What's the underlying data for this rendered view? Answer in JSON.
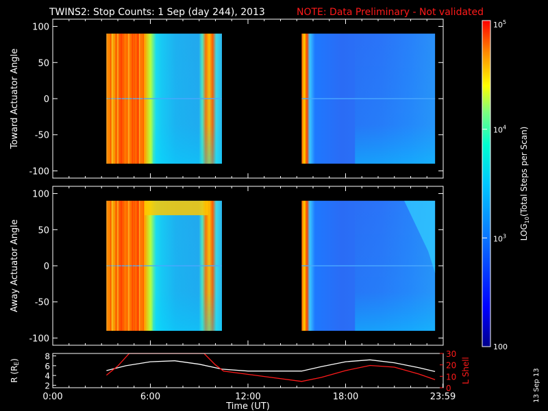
{
  "title": {
    "main": "TWINS2: Stop Counts:  1 Sep (day 244), 2013",
    "note": "NOTE: Data Preliminary - Not validated"
  },
  "stamp": "13 Sep 13",
  "colors": {
    "background": "#000000",
    "axes": "#ffffff",
    "note": "#ff1a1a",
    "r_line": "#ffffff",
    "l_line": "#ff1a1a"
  },
  "chart_data": [
    {
      "type": "heatmap",
      "ylabel": "Toward Actuator Angle",
      "ylim": [
        -110,
        110
      ],
      "yticks": [
        "100",
        "50",
        "0",
        "-50",
        "-100"
      ],
      "xlim_hours": [
        0,
        24
      ],
      "scale": "log10",
      "data_blocks": [
        {
          "start_hour": 3.3,
          "end_hour": 10.4,
          "angle_range": [
            -90,
            90
          ]
        },
        {
          "start_hour": 15.3,
          "end_hour": 23.5,
          "angle_range": [
            -90,
            90
          ]
        }
      ]
    },
    {
      "type": "heatmap",
      "ylabel": "Away Actuator Angle",
      "ylim": [
        -110,
        110
      ],
      "yticks": [
        "100",
        "50",
        "0",
        "-50",
        "-100"
      ],
      "xlim_hours": [
        0,
        24
      ],
      "scale": "log10",
      "data_blocks": [
        {
          "start_hour": 3.3,
          "end_hour": 10.4,
          "angle_range": [
            -90,
            90
          ]
        },
        {
          "start_hour": 15.3,
          "end_hour": 23.5,
          "angle_range": [
            -90,
            90
          ]
        }
      ]
    },
    {
      "type": "line",
      "xlabel": "Time (UT)",
      "xticks": [
        "0:00",
        "6:00",
        "12:00",
        "18:00",
        "23:59"
      ],
      "xtick_hours": [
        0,
        6,
        12,
        18,
        23.98
      ],
      "ylabel_left": "R (R",
      "ylabel_left_sub": "E",
      "ylabel_left_close": ")",
      "ylim_left": [
        1.5,
        8.5
      ],
      "yticks_left": [
        "8",
        "6",
        "4",
        "2"
      ],
      "ylabel_right": "L Shell",
      "ylim_right": [
        0,
        30
      ],
      "yticks_right": [
        "30",
        "20",
        "10",
        "0"
      ],
      "series": [
        {
          "axis": "left",
          "color": "#ffffff",
          "points": [
            [
              3.3,
              5.0
            ],
            [
              4.5,
              6.0
            ],
            [
              6.0,
              6.8
            ],
            [
              7.5,
              7.0
            ],
            [
              9.0,
              6.3
            ],
            [
              10.4,
              5.3
            ],
            [
              12.0,
              4.9
            ],
            [
              15.3,
              4.9
            ],
            [
              16.5,
              5.8
            ],
            [
              18.0,
              6.8
            ],
            [
              19.5,
              7.2
            ],
            [
              21.0,
              6.6
            ],
            [
              22.5,
              5.6
            ],
            [
              23.5,
              4.8
            ]
          ]
        },
        {
          "axis": "right",
          "color": "#ff1a1a",
          "points": [
            [
              3.3,
              11.0
            ],
            [
              4.0,
              19.0
            ],
            [
              4.7,
              30.5
            ],
            [
              9.3,
              30.5
            ],
            [
              10.0,
              20.0
            ],
            [
              10.5,
              14.5
            ],
            [
              15.3,
              5.5
            ],
            [
              16.5,
              9.0
            ],
            [
              18.0,
              15.0
            ],
            [
              19.5,
              19.5
            ],
            [
              21.0,
              18.0
            ],
            [
              22.5,
              12.0
            ],
            [
              23.5,
              7.0
            ]
          ]
        }
      ]
    }
  ],
  "colorbar": {
    "label": "LOG",
    "label_sub": "10",
    "label_rest": "(Total Steps per Scan)",
    "ticks": [
      {
        "base": "10",
        "exp": "5"
      },
      {
        "base": "10",
        "exp": "4"
      },
      {
        "base": "10",
        "exp": "3"
      },
      {
        "base": "100",
        "exp": ""
      }
    ],
    "tick_values": [
      100000,
      10000,
      1000,
      100
    ]
  }
}
